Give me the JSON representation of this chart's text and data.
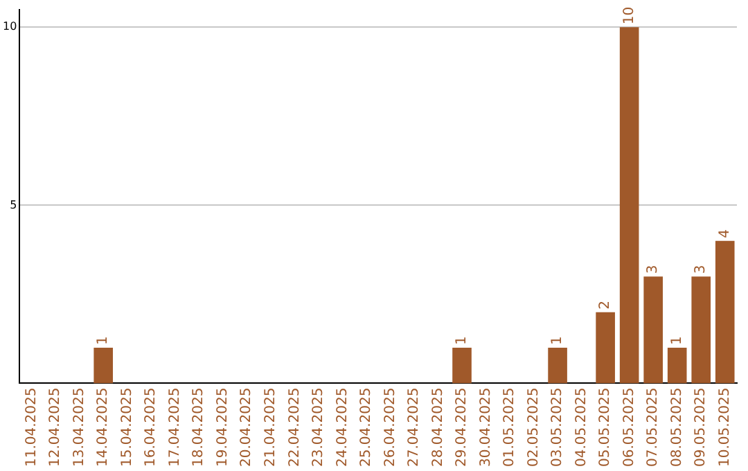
{
  "chart_data": {
    "type": "bar",
    "categories": [
      "11.04.2025",
      "12.04.2025",
      "13.04.2025",
      "14.04.2025",
      "15.04.2025",
      "16.04.2025",
      "17.04.2025",
      "18.04.2025",
      "19.04.2025",
      "20.04.2025",
      "21.04.2025",
      "22.04.2025",
      "23.04.2025",
      "24.04.2025",
      "25.04.2025",
      "26.04.2025",
      "27.04.2025",
      "28.04.2025",
      "29.04.2025",
      "30.04.2025",
      "01.05.2025",
      "02.05.2025",
      "03.05.2025",
      "04.05.2025",
      "05.05.2025",
      "06.05.2025",
      "07.05.2025",
      "08.05.2025",
      "09.05.2025",
      "10.05.2025"
    ],
    "values": [
      0,
      0,
      0,
      1,
      0,
      0,
      0,
      0,
      0,
      0,
      0,
      0,
      0,
      0,
      0,
      0,
      0,
      0,
      1,
      0,
      0,
      0,
      1,
      0,
      2,
      10,
      3,
      1,
      3,
      4
    ],
    "value_labels": [
      null,
      null,
      null,
      "1",
      null,
      null,
      null,
      null,
      null,
      null,
      null,
      null,
      null,
      null,
      null,
      null,
      null,
      null,
      "1",
      null,
      null,
      null,
      "1",
      null,
      "2",
      "10",
      "3",
      "1",
      "3",
      "4"
    ],
    "color": "#a0592a",
    "ylim": [
      0,
      10.5
    ],
    "yticks": [
      5,
      10
    ],
    "grid": "y"
  }
}
